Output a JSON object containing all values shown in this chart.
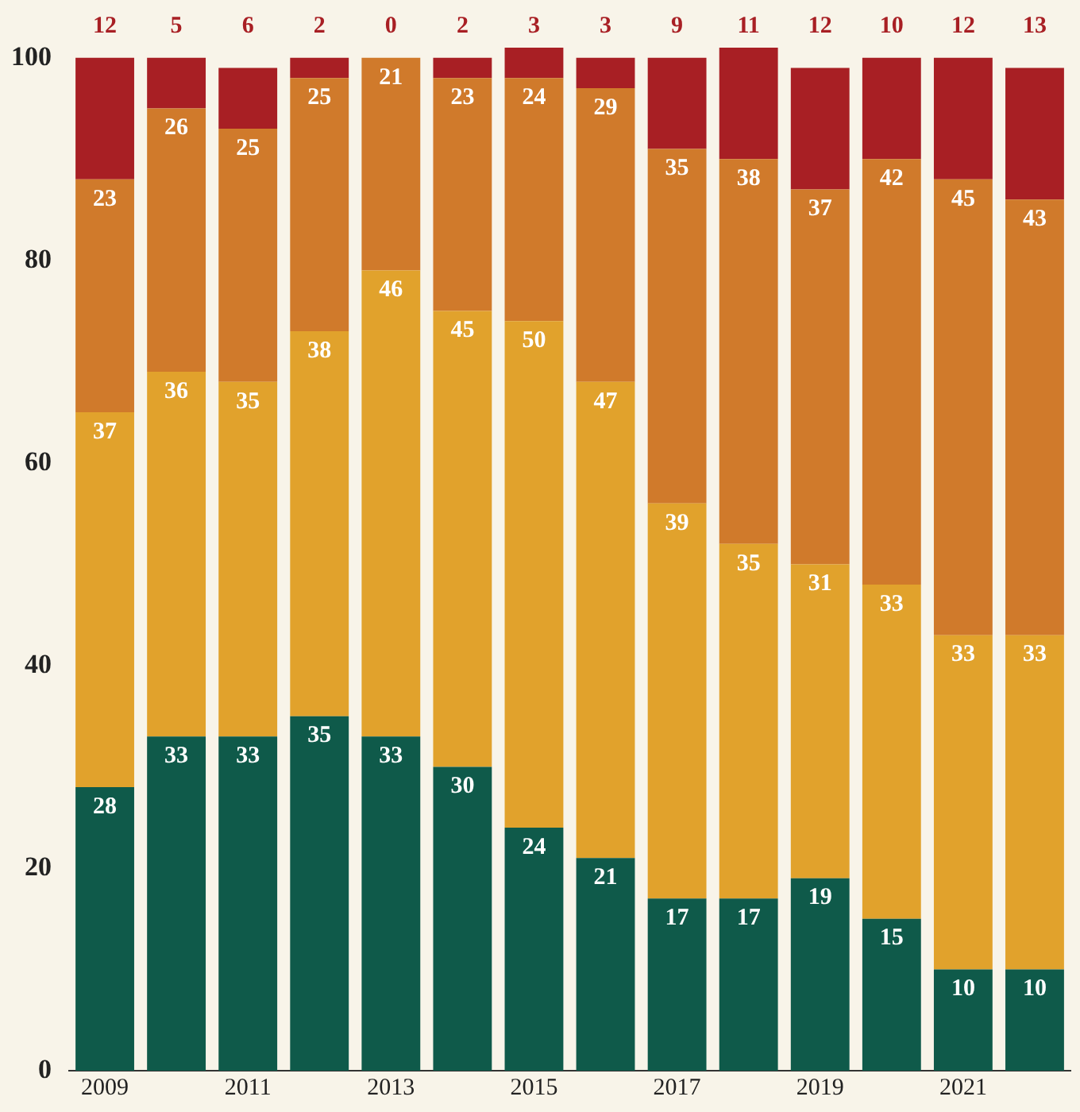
{
  "chart_data": {
    "type": "bar",
    "stacked": true,
    "data_labels": true,
    "legend": false,
    "grid": false,
    "categories": [
      "2009",
      null,
      "2011",
      null,
      "2013",
      null,
      "2015",
      null,
      "2017",
      null,
      "2019",
      null,
      "2021",
      null
    ],
    "ylim": [
      0,
      101
    ],
    "yticks": [
      0,
      20,
      40,
      60,
      80,
      100
    ],
    "series": [
      {
        "color": "#0f5a4a",
        "values": [
          28,
          33,
          33,
          35,
          33,
          30,
          24,
          21,
          17,
          17,
          19,
          15,
          10,
          10
        ]
      },
      {
        "color": "#e1a22c",
        "values": [
          37,
          36,
          35,
          38,
          46,
          45,
          50,
          47,
          39,
          35,
          31,
          33,
          33,
          33
        ]
      },
      {
        "color": "#d07a2b",
        "values": [
          23,
          26,
          25,
          25,
          21,
          23,
          24,
          29,
          35,
          38,
          37,
          42,
          45,
          43
        ]
      },
      {
        "color": "#a81f24",
        "values": [
          12,
          5,
          6,
          2,
          0,
          2,
          3,
          3,
          9,
          11,
          12,
          10,
          12,
          13
        ]
      }
    ]
  }
}
